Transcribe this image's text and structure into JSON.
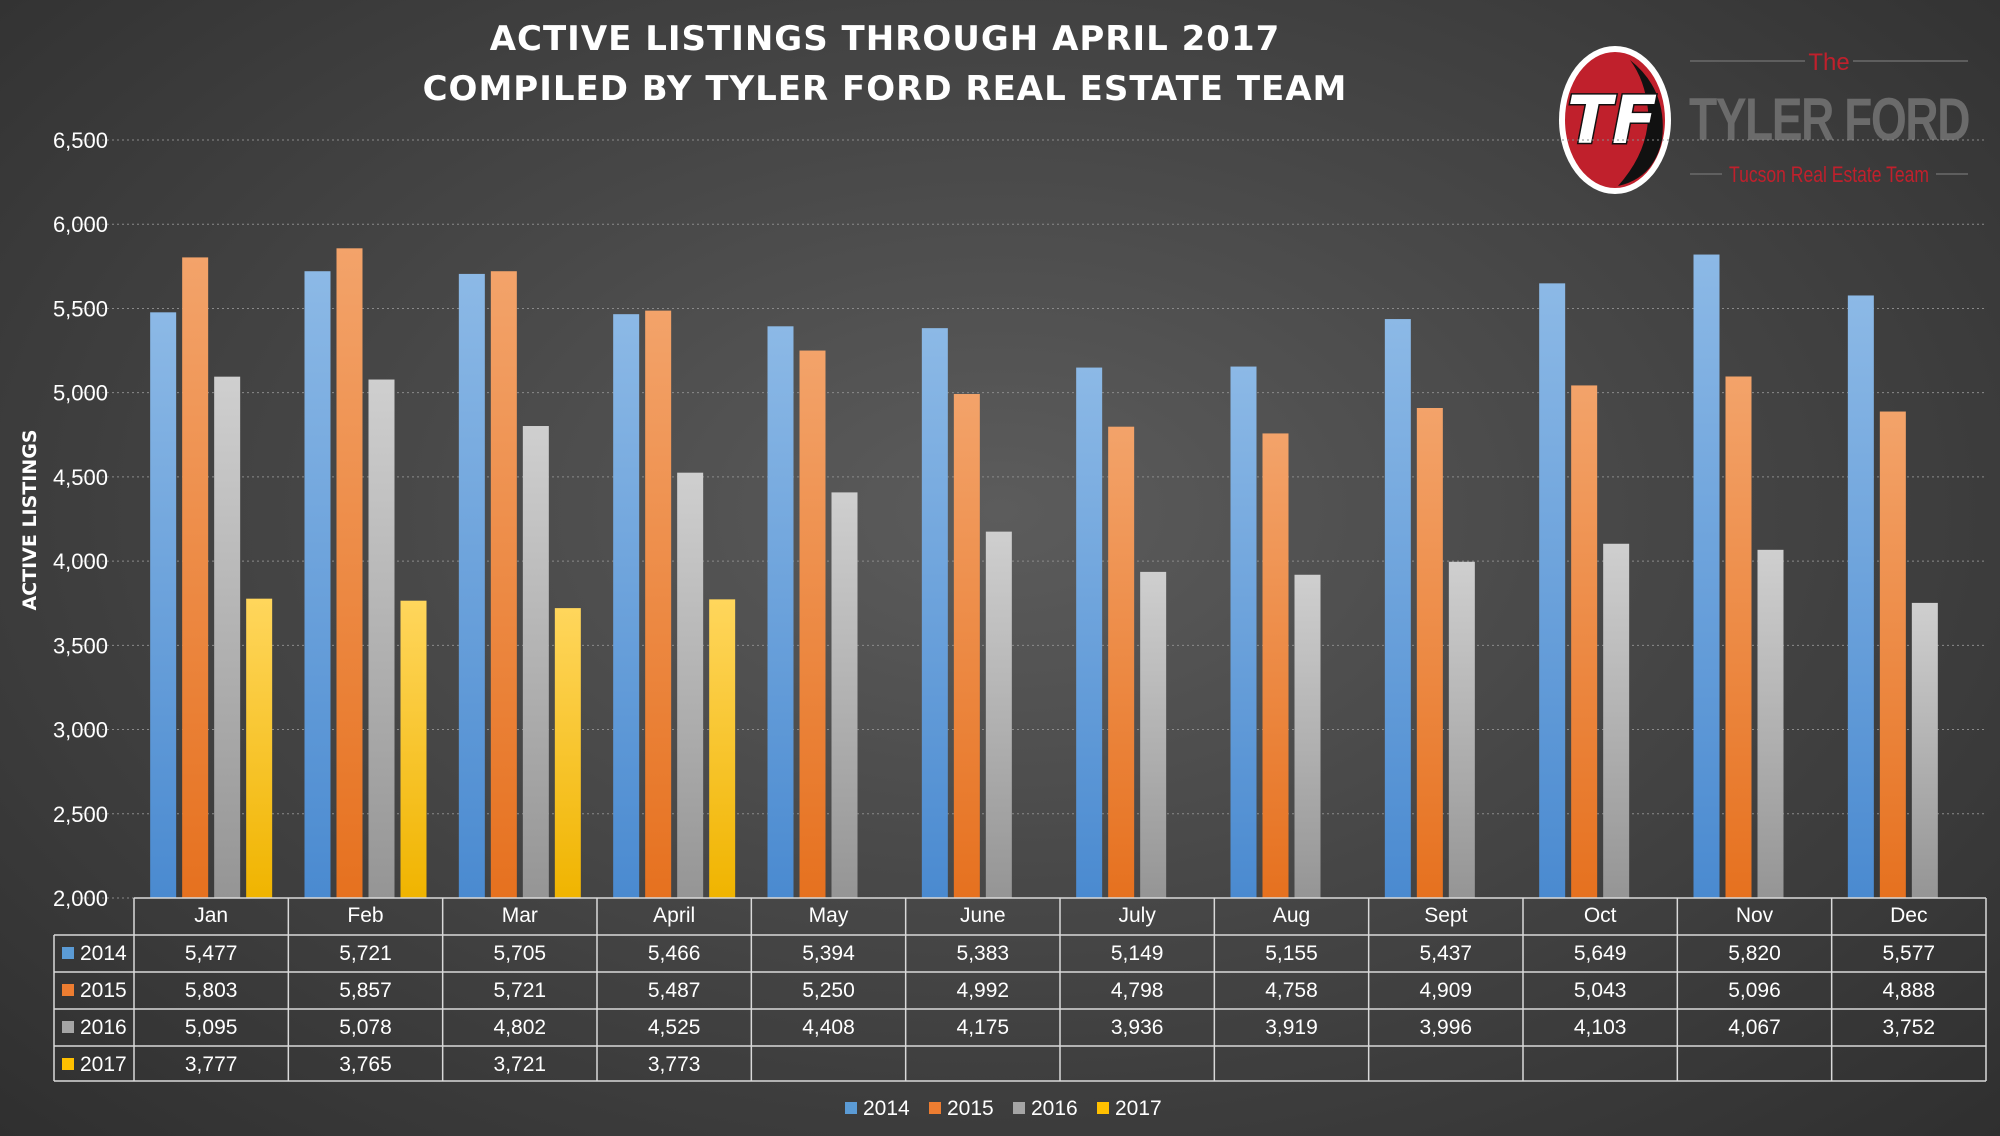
{
  "chart_data": {
    "type": "bar",
    "title": "ACTIVE LISTINGS THROUGH APRIL 2017",
    "subtitle": "COMPILED BY TYLER FORD REAL ESTATE TEAM",
    "xlabel": "",
    "ylabel": "ACTIVE LISTINGS",
    "ylim": [
      2000,
      6500
    ],
    "yticks": [
      "2,000",
      "2,500",
      "3,000",
      "3,500",
      "4,000",
      "4,500",
      "5,000",
      "5,500",
      "6,000",
      "6,500"
    ],
    "ytick_values": [
      2000,
      2500,
      3000,
      3500,
      4000,
      4500,
      5000,
      5500,
      6000,
      6500
    ],
    "grid": true,
    "legend_position": "bottom",
    "categories": [
      "Jan",
      "Feb",
      "Mar",
      "April",
      "May",
      "June",
      "July",
      "Aug",
      "Sept",
      "Oct",
      "Nov",
      "Dec"
    ],
    "series": [
      {
        "name": "2014",
        "color": "#5b9bd5",
        "values": [
          5477,
          5721,
          5705,
          5466,
          5394,
          5383,
          5149,
          5155,
          5437,
          5649,
          5820,
          5577
        ],
        "labels": [
          "5,477",
          "5,721",
          "5,705",
          "5,466",
          "5,394",
          "5,383",
          "5,149",
          "5,155",
          "5,437",
          "5,649",
          "5,820",
          "5,577"
        ]
      },
      {
        "name": "2015",
        "color": "#ed7d31",
        "values": [
          5803,
          5857,
          5721,
          5487,
          5250,
          4992,
          4798,
          4758,
          4909,
          5043,
          5096,
          4888
        ],
        "labels": [
          "5,803",
          "5,857",
          "5,721",
          "5,487",
          "5,250",
          "4,992",
          "4,798",
          "4,758",
          "4,909",
          "5,043",
          "5,096",
          "4,888"
        ]
      },
      {
        "name": "2016",
        "color": "#a5a5a5",
        "values": [
          5095,
          5078,
          4802,
          4525,
          4408,
          4175,
          3936,
          3919,
          3996,
          4103,
          4067,
          3752
        ],
        "labels": [
          "5,095",
          "5,078",
          "4,802",
          "4,525",
          "4,408",
          "4,175",
          "3,936",
          "3,919",
          "3,996",
          "4,103",
          "4,067",
          "3,752"
        ]
      },
      {
        "name": "2017",
        "color": "#ffc000",
        "values": [
          3777,
          3765,
          3721,
          3773,
          null,
          null,
          null,
          null,
          null,
          null,
          null,
          null
        ],
        "labels": [
          "3,777",
          "3,765",
          "3,721",
          "3,773",
          "",
          "",
          "",
          "",
          "",
          "",
          "",
          ""
        ]
      }
    ]
  },
  "logo": {
    "the": "The",
    "name": "TYLER FORD",
    "team": "Tucson Real Estate Team",
    "monogram": "TF"
  }
}
